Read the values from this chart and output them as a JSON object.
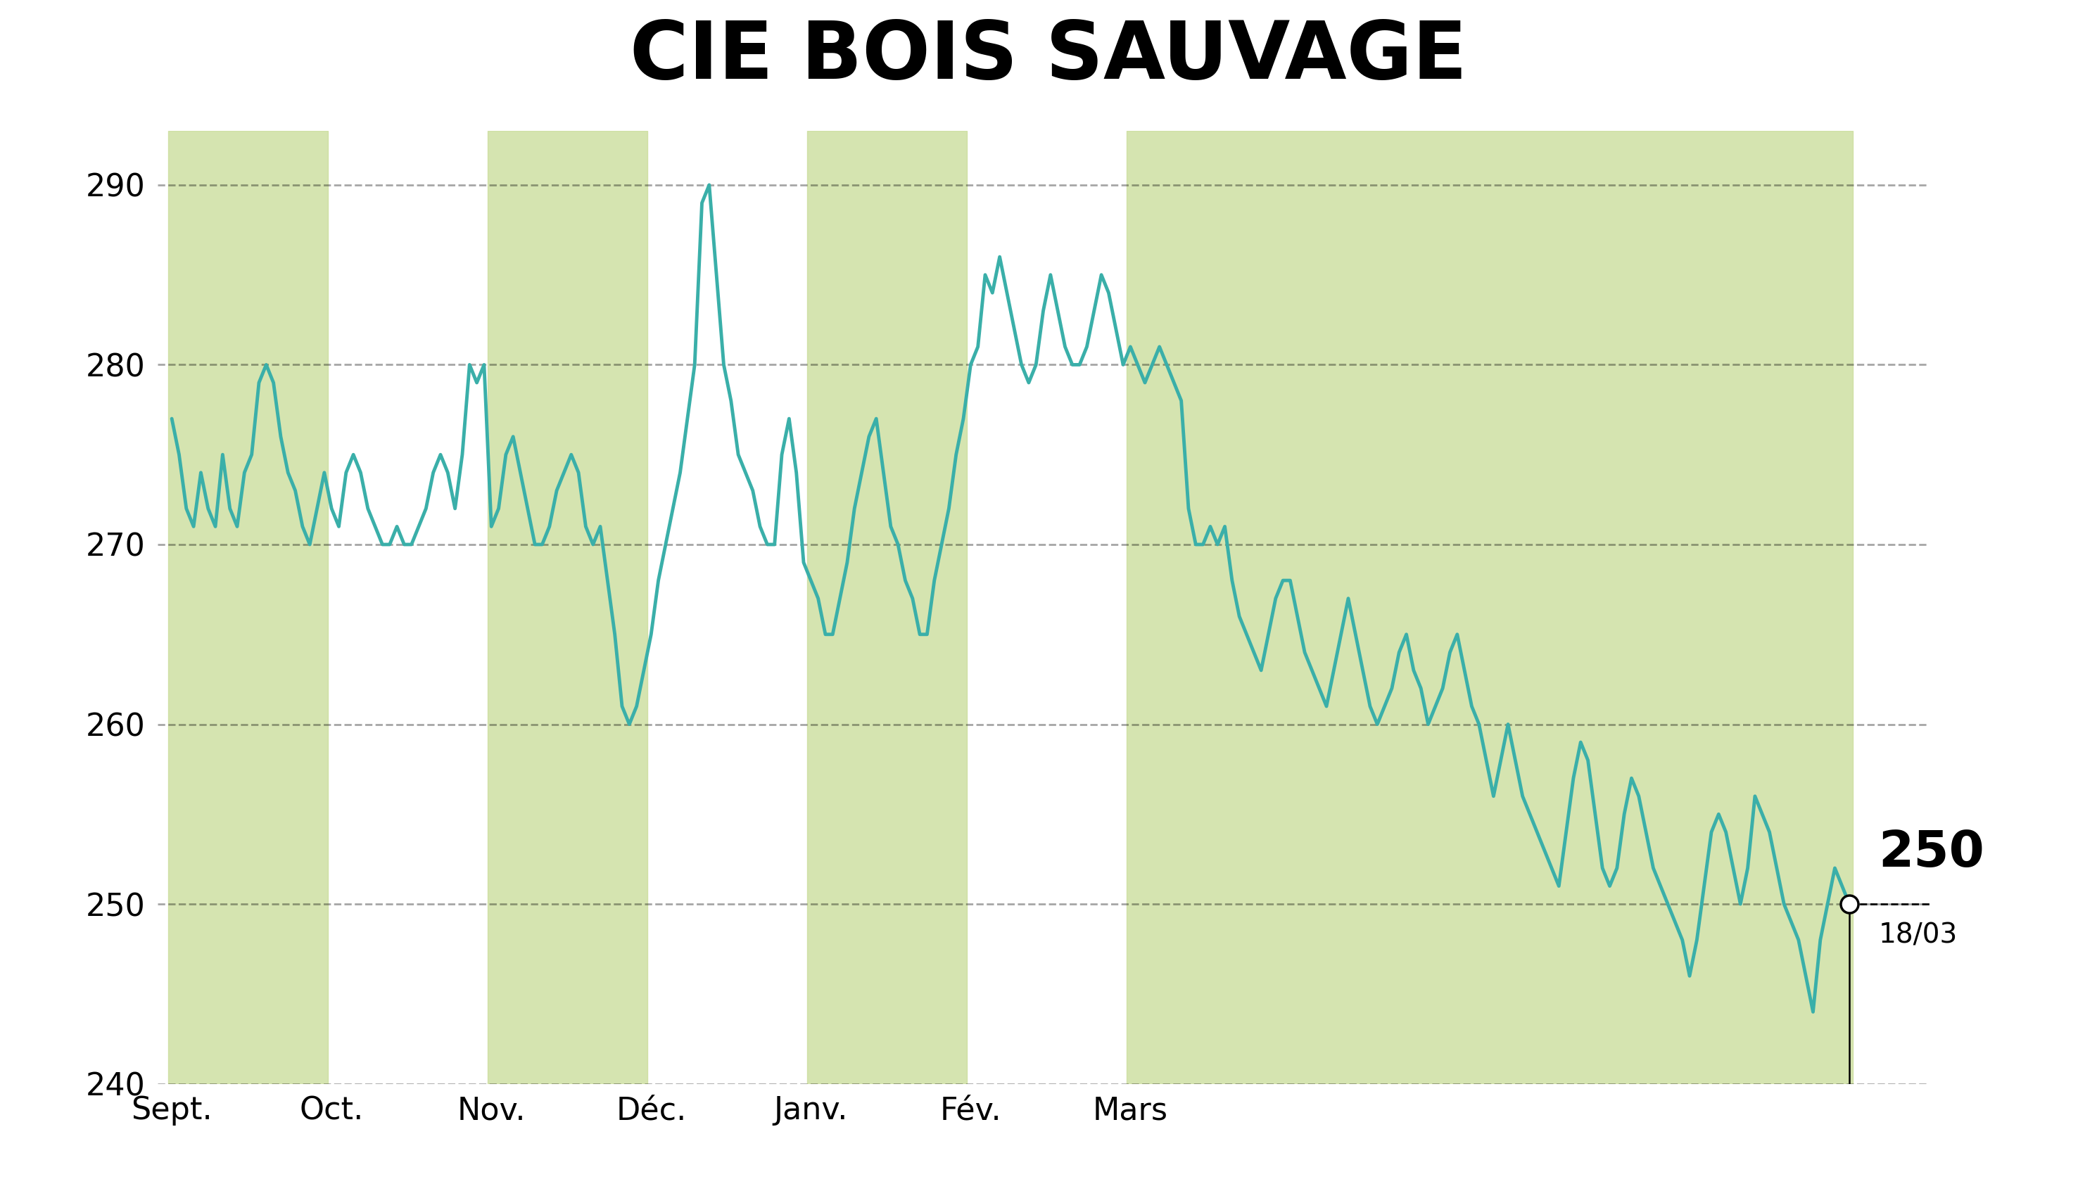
{
  "title": "CIE BOIS SAUVAGE",
  "title_bg_color": "#c8dc96",
  "chart_bg_color": "#ffffff",
  "line_color": "#3aafa9",
  "line_width": 3.5,
  "fill_color": "#c8dc96",
  "fill_alpha": 0.75,
  "ylim": [
    240,
    293
  ],
  "yticks": [
    240,
    250,
    260,
    270,
    280,
    290
  ],
  "grid_color": "#000000",
  "grid_alpha": 0.35,
  "last_value": 250,
  "last_date_label": "18/03",
  "month_labels": [
    "Sept.",
    "Oct.",
    "Nov.",
    "Déc.",
    "Janv.",
    "Fév.",
    "Mars"
  ],
  "prices": [
    277,
    275,
    272,
    271,
    274,
    272,
    271,
    275,
    272,
    271,
    274,
    275,
    279,
    280,
    279,
    276,
    274,
    273,
    271,
    270,
    272,
    274,
    272,
    271,
    274,
    275,
    274,
    272,
    271,
    270,
    270,
    271,
    270,
    270,
    271,
    272,
    274,
    275,
    274,
    272,
    275,
    280,
    279,
    280,
    271,
    272,
    275,
    276,
    274,
    272,
    270,
    270,
    271,
    273,
    274,
    275,
    274,
    271,
    270,
    271,
    268,
    265,
    261,
    260,
    261,
    263,
    265,
    268,
    270,
    272,
    274,
    277,
    280,
    289,
    290,
    285,
    280,
    278,
    275,
    274,
    273,
    271,
    270,
    270,
    275,
    277,
    274,
    269,
    268,
    267,
    265,
    265,
    267,
    269,
    272,
    274,
    276,
    277,
    274,
    271,
    270,
    268,
    267,
    265,
    265,
    268,
    270,
    272,
    275,
    277,
    280,
    281,
    285,
    284,
    286,
    284,
    282,
    280,
    279,
    280,
    283,
    285,
    283,
    281,
    280,
    280,
    281,
    283,
    285,
    284,
    282,
    280,
    281,
    280,
    279,
    280,
    281,
    280,
    279,
    278,
    272,
    270,
    270,
    271,
    270,
    271,
    268,
    266,
    265,
    264,
    263,
    265,
    267,
    268,
    268,
    266,
    264,
    263,
    262,
    261,
    263,
    265,
    267,
    265,
    263,
    261,
    260,
    261,
    262,
    264,
    265,
    263,
    262,
    260,
    261,
    262,
    264,
    265,
    263,
    261,
    260,
    258,
    256,
    258,
    260,
    258,
    256,
    255,
    254,
    253,
    252,
    251,
    254,
    257,
    259,
    258,
    255,
    252,
    251,
    252,
    255,
    257,
    256,
    254,
    252,
    251,
    250,
    249,
    248,
    246,
    248,
    251,
    254,
    255,
    254,
    252,
    250,
    252,
    256,
    255,
    254,
    252,
    250,
    249,
    248,
    246,
    244,
    248,
    250,
    252,
    251,
    250
  ]
}
